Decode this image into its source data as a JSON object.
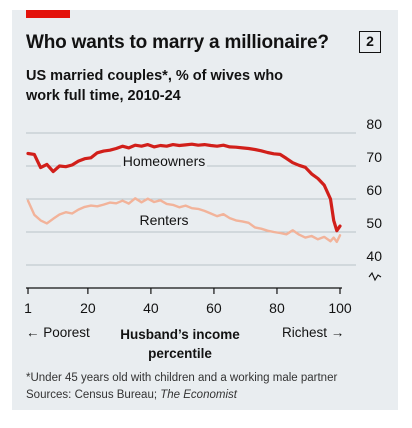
{
  "header": {
    "title": "Who wants to marry a millionaire?",
    "badge": "2",
    "subtitle": "US married couples*, % of wives who work full time, 2010-24"
  },
  "x_annotations": {
    "left": "← Poorest",
    "center_line1": "Husband’s income",
    "center_line2": "percentile",
    "right": "Richest →"
  },
  "footnote": {
    "line1": "*Under 45 years old with children and a working male partner",
    "sources_prefix": "Sources: Census Bureau; ",
    "sources_publication": "The Economist"
  },
  "colors": {
    "homeowners": "#d11f1a",
    "renters": "#f2b39a",
    "grid": "#b9c3c9",
    "axis": "#121212",
    "background": "#e9edf0",
    "brand_tag": "#e3120b"
  },
  "chart_data": {
    "type": "line",
    "title": "Who wants to marry a millionaire?",
    "subtitle": "US married couples*, % of wives who work full time, 2010-24",
    "xlabel": "Husband’s income percentile",
    "ylabel": "",
    "xlim": [
      1,
      100
    ],
    "ylim": [
      40,
      80
    ],
    "y_axis_break": true,
    "x_ticks": [
      1,
      20,
      40,
      60,
      80,
      100
    ],
    "y_ticks": [
      40,
      50,
      60,
      70,
      80
    ],
    "grid": "horizontal",
    "legend": "inline labels",
    "series": [
      {
        "name": "Homeowners",
        "x": [
          1,
          3,
          5,
          7,
          9,
          11,
          13,
          15,
          17,
          19,
          21,
          23,
          25,
          27,
          29,
          31,
          33,
          35,
          37,
          39,
          41,
          43,
          45,
          47,
          49,
          51,
          53,
          55,
          57,
          59,
          61,
          63,
          65,
          67,
          69,
          71,
          73,
          75,
          77,
          79,
          81,
          83,
          85,
          87,
          89,
          91,
          93,
          95,
          97,
          98,
          99,
          100
        ],
        "values": [
          73.8,
          73.5,
          69.5,
          70.5,
          68.3,
          70.0,
          69.8,
          70.3,
          71.5,
          72.2,
          72.5,
          74.0,
          74.5,
          74.8,
          75.3,
          76.0,
          75.5,
          76.3,
          76.0,
          76.5,
          75.8,
          76.2,
          76.0,
          76.5,
          76.2,
          76.4,
          76.6,
          76.3,
          76.5,
          76.2,
          76.0,
          76.3,
          75.8,
          75.7,
          75.5,
          75.3,
          75.0,
          74.6,
          74.1,
          73.7,
          73.5,
          72.3,
          71.0,
          70.2,
          69.6,
          67.6,
          66.2,
          64.2,
          60.0,
          53.5,
          50.4,
          51.8
        ]
      },
      {
        "name": "Renters",
        "x": [
          1,
          3,
          5,
          7,
          9,
          11,
          13,
          15,
          17,
          19,
          21,
          23,
          25,
          27,
          29,
          31,
          33,
          35,
          37,
          39,
          41,
          43,
          45,
          47,
          49,
          51,
          53,
          55,
          57,
          59,
          61,
          63,
          65,
          67,
          69,
          71,
          73,
          75,
          77,
          79,
          81,
          83,
          85,
          87,
          89,
          91,
          93,
          95,
          97,
          98,
          99,
          100
        ],
        "values": [
          59.5,
          55.2,
          53.5,
          52.6,
          54.0,
          55.3,
          56.0,
          55.6,
          56.8,
          57.6,
          58.0,
          57.8,
          58.3,
          58.9,
          58.7,
          59.5,
          58.6,
          60.2,
          59.0,
          60.1,
          59.1,
          59.6,
          58.5,
          58.2,
          57.5,
          58.0,
          57.2,
          57.0,
          56.4,
          55.6,
          54.8,
          55.4,
          54.2,
          53.5,
          53.2,
          52.8,
          51.4,
          51.0,
          50.4,
          50.0,
          49.7,
          49.3,
          50.5,
          49.2,
          48.3,
          48.8,
          47.8,
          48.5,
          47.2,
          48.3,
          47.0,
          49.0
        ]
      }
    ]
  }
}
